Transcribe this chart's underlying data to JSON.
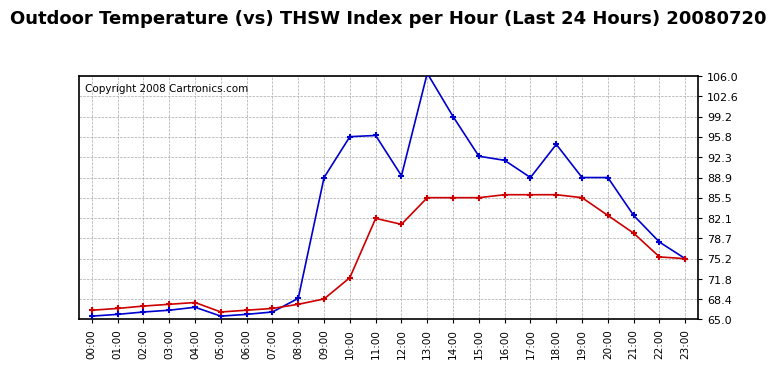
{
  "title": "Outdoor Temperature (vs) THSW Index per Hour (Last 24 Hours) 20080720",
  "copyright": "Copyright 2008 Cartronics.com",
  "hours": [
    "00:00",
    "01:00",
    "02:00",
    "03:00",
    "04:00",
    "05:00",
    "06:00",
    "07:00",
    "08:00",
    "09:00",
    "10:00",
    "11:00",
    "12:00",
    "13:00",
    "14:00",
    "15:00",
    "16:00",
    "17:00",
    "18:00",
    "19:00",
    "20:00",
    "21:00",
    "22:00",
    "23:00"
  ],
  "temp": [
    66.5,
    66.8,
    67.2,
    67.5,
    67.8,
    66.2,
    66.5,
    66.8,
    67.5,
    68.4,
    72.0,
    82.0,
    81.0,
    85.5,
    85.5,
    85.5,
    86.0,
    86.0,
    86.0,
    85.5,
    82.5,
    79.5,
    75.5,
    75.2
  ],
  "thsw": [
    65.5,
    65.8,
    66.2,
    66.5,
    67.0,
    65.5,
    65.8,
    66.2,
    68.5,
    88.9,
    95.8,
    96.0,
    89.2,
    106.5,
    99.2,
    92.5,
    91.8,
    88.9,
    94.5,
    88.9,
    88.9,
    82.5,
    78.0,
    75.2
  ],
  "temp_color": "#cc0000",
  "thsw_color": "#0000cc",
  "bg_color": "#ffffff",
  "grid_color": "#aaaaaa",
  "ylim": [
    65.0,
    106.0
  ],
  "yticks": [
    65.0,
    68.4,
    71.8,
    75.2,
    78.7,
    82.1,
    85.5,
    88.9,
    92.3,
    95.8,
    99.2,
    102.6,
    106.0
  ],
  "title_fontsize": 13,
  "copyright_fontsize": 7.5
}
